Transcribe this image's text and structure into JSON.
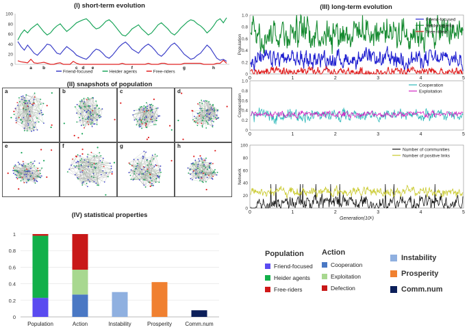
{
  "panel_titles": {
    "short": "(I)   short-term evolution",
    "snapshots": "(II)   snapshots of population",
    "long": "(III)   long-term evolution",
    "stats": "(IV)   statistical properties"
  },
  "colors": {
    "friend": "#3b3fc8",
    "heider": "#1aa55a",
    "free": "#e02020",
    "cooperation": "#2ab8b8",
    "exploitation": "#d020c0",
    "communities": "#111111",
    "positive_links": "#c8c828",
    "bar_friend": "#5a4bf0",
    "bar_heider": "#12b04a",
    "bar_free": "#d01818",
    "bar_coop": "#4a78c4",
    "bar_exploit": "#a8d890",
    "bar_defect": "#c81818",
    "bar_instability": "#8fb0e0",
    "bar_prosperity": "#f08030",
    "bar_comm": "#0c1f5a"
  },
  "snapshots": {
    "letters": [
      "a",
      "b",
      "c",
      "d",
      "e",
      "f",
      "g",
      "h"
    ]
  },
  "chart_data": [
    {
      "id": "short_term",
      "type": "line",
      "title": "(I) short-term evolution",
      "ylim": [
        0,
        100
      ],
      "yticks": [
        "0",
        "20",
        "40",
        "60",
        "80",
        "100"
      ],
      "series": [
        {
          "name": "Friend-focused",
          "color": "#3b3fc8",
          "values": [
            45,
            35,
            28,
            38,
            30,
            22,
            18,
            25,
            32,
            40,
            38,
            30,
            22,
            20,
            28,
            35,
            30,
            25,
            18,
            15,
            12,
            10,
            16,
            24,
            30,
            28,
            22,
            15,
            12,
            18,
            26,
            34,
            40,
            44,
            38,
            30,
            26,
            22,
            30,
            36,
            40,
            35,
            28,
            20,
            16,
            22,
            30,
            38,
            42,
            36,
            28,
            20,
            15,
            10,
            12,
            18,
            22,
            30,
            38,
            32,
            22,
            12,
            8,
            10,
            6
          ]
        },
        {
          "name": "Heider agents",
          "color": "#1aa55a",
          "values": [
            48,
            60,
            68,
            62,
            70,
            75,
            80,
            72,
            64,
            58,
            62,
            70,
            76,
            80,
            72,
            65,
            70,
            76,
            82,
            85,
            88,
            90,
            84,
            76,
            70,
            72,
            78,
            85,
            88,
            82,
            74,
            66,
            58,
            56,
            62,
            70,
            74,
            78,
            70,
            64,
            58,
            62,
            70,
            78,
            82,
            76,
            70,
            62,
            58,
            64,
            72,
            78,
            84,
            88,
            86,
            80,
            76,
            70,
            62,
            68,
            76,
            86,
            90,
            82,
            92
          ]
        },
        {
          "name": "Free-riders",
          "color": "#e02020",
          "values": [
            7,
            5,
            4,
            3,
            10,
            3,
            2,
            3,
            4,
            2,
            0,
            0,
            2,
            3,
            0,
            0,
            0,
            6,
            2,
            0,
            0,
            0,
            0,
            0,
            0,
            0,
            0,
            0,
            0,
            0,
            0,
            0,
            2,
            0,
            0,
            0,
            0,
            0,
            0,
            0,
            2,
            0,
            0,
            0,
            2,
            2,
            0,
            0,
            0,
            0,
            0,
            2,
            2,
            2,
            2,
            2,
            2,
            0,
            0,
            0,
            0,
            2,
            2,
            8,
            2
          ]
        }
      ],
      "markers": [
        {
          "label": "a",
          "x": 4
        },
        {
          "label": "b",
          "x": 8
        },
        {
          "label": "c",
          "x": 18
        },
        {
          "label": "d",
          "x": 20
        },
        {
          "label": "e",
          "x": 23
        },
        {
          "label": "f",
          "x": 35
        },
        {
          "label": "g",
          "x": 51
        },
        {
          "label": "h",
          "x": 60
        }
      ],
      "legend": [
        "Friend-focused",
        "Heider agents",
        "Free-riders"
      ]
    },
    {
      "id": "long_population",
      "type": "area",
      "ylabel": "Population",
      "ylim": [
        0,
        1.0
      ],
      "yticks": [
        "0",
        "0.2",
        "0.4",
        "0.6",
        "0.8",
        "1.0"
      ],
      "xlim": [
        0,
        5
      ],
      "xticks": [
        "0",
        "1",
        "2",
        "3",
        "4",
        "5"
      ],
      "series": [
        {
          "name": "Friend-focused",
          "color": "#2020d0",
          "mean": 0.25,
          "spread": 0.12
        },
        {
          "name": "Heider agents",
          "color": "#158a30",
          "mean": 0.72,
          "spread": 0.22
        },
        {
          "name": "Free-riders",
          "color": "#e02020",
          "mean": 0.03,
          "spread": 0.06
        }
      ],
      "legend": [
        "Friend-focused",
        "Heider-agents",
        "Free-riders"
      ]
    },
    {
      "id": "long_cooperation",
      "type": "line",
      "ylabel": "Cooperation",
      "ylim": [
        0,
        1.0
      ],
      "yticks": [
        "0",
        "0.2",
        "0.4",
        "0.6",
        "0.8",
        "1.0"
      ],
      "xlim": [
        0,
        5
      ],
      "xticks": [
        "0",
        "1",
        "2",
        "3",
        "4",
        "5"
      ],
      "series": [
        {
          "name": "Cooperation",
          "color": "#2ab8b8",
          "mean": 0.3,
          "spread": 0.1
        },
        {
          "name": "Exploitation",
          "color": "#d020c0",
          "mean": 0.32,
          "spread": 0.05
        }
      ],
      "legend": [
        "Cooperation",
        "Exploitation"
      ]
    },
    {
      "id": "long_network",
      "type": "line",
      "ylabel": "Network",
      "xlabel": "Generation(10⁶)",
      "ylim": [
        0,
        100
      ],
      "yticks": [
        "0",
        "20",
        "40",
        "60",
        "80",
        "100"
      ],
      "xlim": [
        0,
        5
      ],
      "xticks": [
        "0",
        "1",
        "2",
        "3",
        "4",
        "5"
      ],
      "series": [
        {
          "name": "Number of communities",
          "color": "#111111",
          "mean": 8,
          "spread": 10
        },
        {
          "name": "Number of positive links",
          "color": "#c8c828",
          "mean": 26,
          "spread": 6
        }
      ],
      "legend": [
        "Number of communities",
        "Number of positive links"
      ]
    },
    {
      "id": "stats",
      "type": "bar",
      "title": "(IV) statistical properties",
      "ylim": [
        0,
        1
      ],
      "yticks": [
        "0",
        "0.2",
        "0.4",
        "0.6",
        "0.8",
        "1"
      ],
      "categories": [
        "Population",
        "Action",
        "Instability",
        "Prosperity",
        "Comm.num"
      ],
      "stacks": [
        [
          {
            "name": "Friend-focused",
            "value": 0.23,
            "color": "#5a4bf0"
          },
          {
            "name": "Heider agents",
            "value": 0.75,
            "color": "#12b04a"
          },
          {
            "name": "Free-riders",
            "value": 0.02,
            "color": "#d01818"
          }
        ],
        [
          {
            "name": "Cooperation",
            "value": 0.27,
            "color": "#4a78c4"
          },
          {
            "name": "Exploitation",
            "value": 0.3,
            "color": "#a8d890"
          },
          {
            "name": "Defection",
            "value": 0.43,
            "color": "#c81818"
          }
        ],
        [
          {
            "name": "Instability",
            "value": 0.3,
            "color": "#8fb0e0"
          }
        ],
        [
          {
            "name": "Prosperity",
            "value": 0.42,
            "color": "#f08030"
          }
        ],
        [
          {
            "name": "Comm.num",
            "value": 0.08,
            "color": "#0c1f5a"
          }
        ]
      ]
    }
  ],
  "legend_iv": {
    "population": {
      "title": "Population",
      "items": [
        "Friend-focused",
        "Heider agents",
        "Free-riders"
      ]
    },
    "action": {
      "title": "Action",
      "items": [
        "Cooperation",
        "Exploitation",
        "Defection"
      ]
    },
    "other": [
      "Instability",
      "Prosperity",
      "Comm.num"
    ]
  }
}
